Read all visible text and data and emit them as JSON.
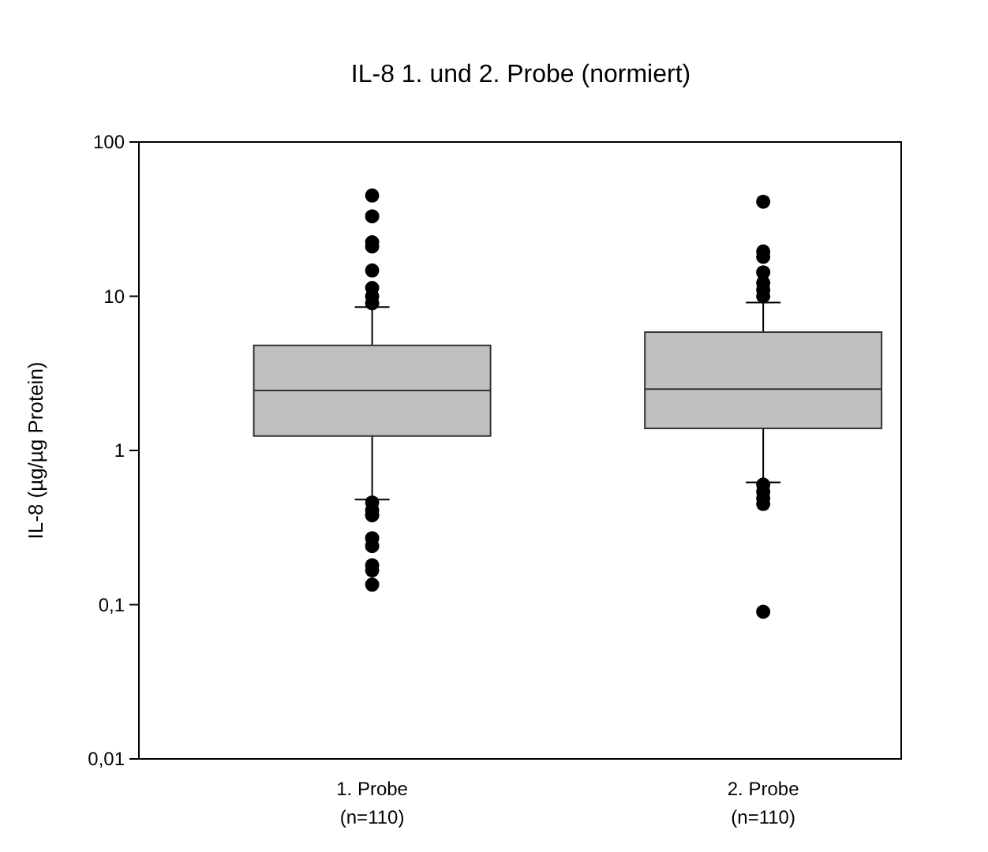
{
  "chart_data": {
    "type": "box",
    "title": "IL-8 1. und 2. Probe (normiert)",
    "ylabel": "IL-8 (µg/µg Protein)",
    "categories": [
      "1. Probe\n(n=110)",
      "2. Probe\n(n=110)"
    ],
    "log": true,
    "grid": false,
    "color": "#c0c0c0",
    "ylim": [
      0.01,
      100
    ],
    "yticks": [
      {
        "value": 0.01,
        "label": "0,01"
      },
      {
        "value": 0.1,
        "label": "0,1"
      },
      {
        "value": 1,
        "label": "1"
      },
      {
        "value": 10,
        "label": "10"
      },
      {
        "value": 100,
        "label": "100"
      }
    ],
    "boxes": [
      {
        "low": 0.48,
        "q1": 1.24,
        "median": 2.45,
        "q3": 4.8,
        "high": 8.5,
        "outliers": [
          45,
          33,
          22.4,
          21,
          14.7,
          11.3,
          10,
          9,
          0.46,
          0.41,
          0.38,
          0.27,
          0.24,
          0.18,
          0.167,
          0.135
        ]
      },
      {
        "low": 0.62,
        "q1": 1.39,
        "median": 2.5,
        "q3": 5.85,
        "high": 9.1,
        "outliers": [
          41,
          19.5,
          18,
          14.3,
          12.2,
          11,
          10,
          0.6,
          0.54,
          0.49,
          0.45,
          0.09
        ]
      }
    ]
  }
}
